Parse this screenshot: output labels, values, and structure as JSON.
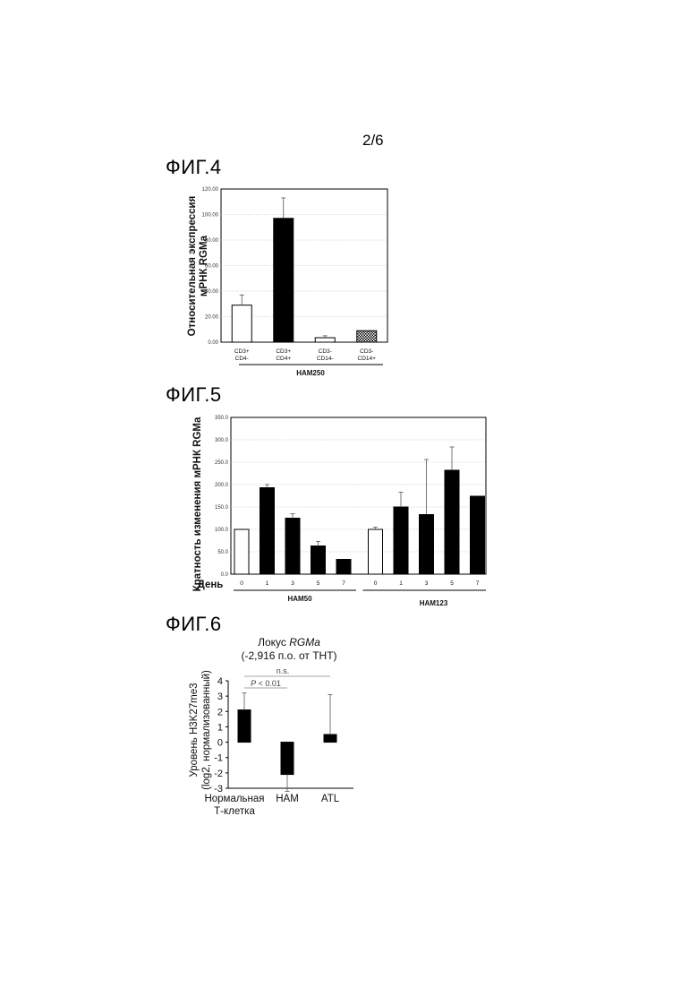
{
  "page_number": "2/6",
  "chart_data": [
    {
      "id": "fig4",
      "figure_label": "ФИГ.4",
      "type": "bar",
      "ylabel": [
        "Относительная экспрессия",
        "мРНК RGMa"
      ],
      "ylim": [
        0,
        120
      ],
      "yticks": [
        "0.00",
        "20.00",
        "40.00",
        "60.00",
        "80.00",
        "100.00",
        "120.00"
      ],
      "ytick_values": [
        0,
        20,
        40,
        60,
        80,
        100,
        120
      ],
      "grid": true,
      "categories": [
        [
          "CD3+",
          "CD4-"
        ],
        [
          "CD3+",
          "CD4+"
        ],
        [
          "CD3-",
          "CD14-"
        ],
        [
          "CD3-",
          "CD14+"
        ]
      ],
      "values": [
        29,
        97,
        3.5,
        9
      ],
      "errors": [
        8,
        16,
        1.5,
        0
      ],
      "fills": [
        "white",
        "black",
        "white",
        "checker"
      ],
      "group_labels": [
        "HAM250"
      ]
    },
    {
      "id": "fig5",
      "figure_label": "ФИГ.5",
      "type": "bar",
      "ylabel": [
        "Кратность изменения мРНК RGMa"
      ],
      "xlabel": "День",
      "ylim": [
        0,
        350
      ],
      "yticks": [
        "0.0",
        "50.0",
        "100.0",
        "150.0",
        "200.0",
        "250.0",
        "300.0",
        "350.0"
      ],
      "ytick_values": [
        0,
        50,
        100,
        150,
        200,
        250,
        300,
        350
      ],
      "grid": true,
      "categories": [
        "0",
        "1",
        "3",
        "5",
        "7",
        "0",
        "1",
        "3",
        "5",
        "7"
      ],
      "values": [
        100,
        193,
        125,
        63,
        33,
        100,
        150,
        133,
        232,
        174
      ],
      "errors": [
        0,
        7,
        10,
        10,
        0,
        5,
        33,
        123,
        52,
        0
      ],
      "fills": [
        "white",
        "black",
        "black",
        "black",
        "black",
        "white",
        "black",
        "black",
        "black",
        "black"
      ],
      "group_labels": [
        "HAM50",
        "HAM123"
      ]
    },
    {
      "id": "fig6",
      "figure_label": "ФИГ.6",
      "type": "bar",
      "title_parts": [
        "Локус ",
        "RGMa"
      ],
      "subtitle": "(-2,916 п.о. от ТНТ)",
      "ylabel": [
        "Уровень H3K27me3",
        "(log2, нормализованный)"
      ],
      "ylim": [
        -3,
        4
      ],
      "yticks": [
        "-3",
        "-2",
        "-1",
        "0",
        "1",
        "2",
        "3",
        "4"
      ],
      "ytick_values": [
        -3,
        -2,
        -1,
        0,
        1,
        2,
        3,
        4
      ],
      "grid": false,
      "categories": [
        [
          "Нормальная",
          "Т-клетка"
        ],
        [
          "HAM"
        ],
        [
          "ATL"
        ]
      ],
      "values": [
        2.1,
        -2.1,
        0.5
      ],
      "errors": [
        1.1,
        1.1,
        2.6
      ],
      "fills": [
        "black",
        "black",
        "black"
      ],
      "annotations": [
        {
          "text": "n.s.",
          "between": [
            0,
            2
          ]
        },
        {
          "text_italic": "P",
          "text_rest": " < 0.01",
          "between": [
            0,
            1
          ]
        }
      ]
    }
  ]
}
